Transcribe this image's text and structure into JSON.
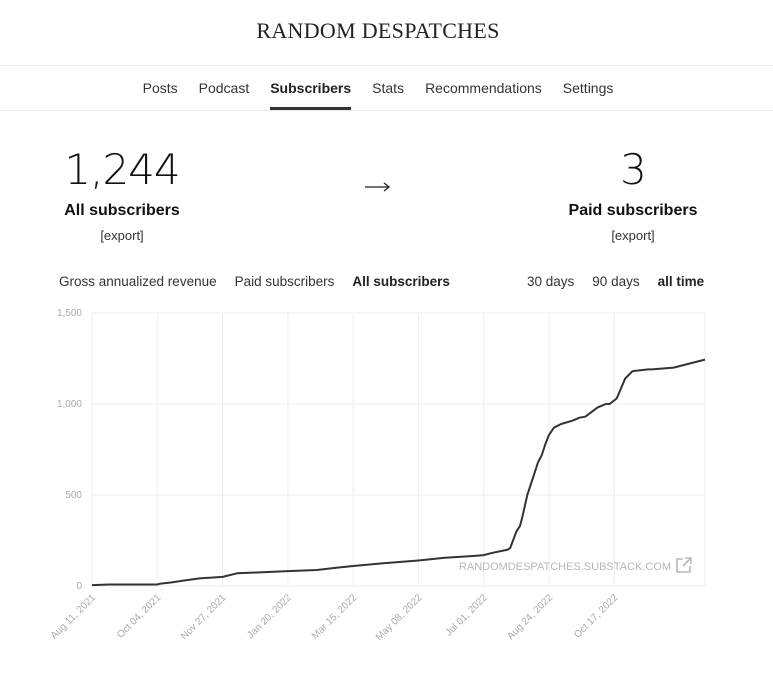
{
  "site": {
    "title": "RANDOM DESPATCHES"
  },
  "nav": {
    "tabs": [
      {
        "label": "Posts",
        "active": false
      },
      {
        "label": "Podcast",
        "active": false
      },
      {
        "label": "Subscribers",
        "active": true
      },
      {
        "label": "Stats",
        "active": false
      },
      {
        "label": "Recommendations",
        "active": false
      },
      {
        "label": "Settings",
        "active": false
      }
    ]
  },
  "stats": {
    "all": {
      "value": "1,244",
      "label": "All subscribers",
      "export": "[export]"
    },
    "arrow": "⟶",
    "paid": {
      "value": "3",
      "label": "Paid subscribers",
      "export": "[export]"
    }
  },
  "filters": {
    "metrics": [
      {
        "label": "Gross annualized revenue",
        "active": false
      },
      {
        "label": "Paid subscribers",
        "active": false
      },
      {
        "label": "All subscribers",
        "active": true
      }
    ],
    "ranges": [
      {
        "label": "30 days",
        "active": false
      },
      {
        "label": "90 days",
        "active": false
      },
      {
        "label": "all time",
        "active": true
      }
    ]
  },
  "colors": {
    "line": "#333333",
    "grid": "#eeeeee",
    "axis_text": "#aaaaaa",
    "watermark": "#b8b8b8"
  },
  "chart_data": {
    "type": "line",
    "title": "",
    "xlabel": "",
    "ylabel": "",
    "ylim": [
      0,
      1500
    ],
    "yticks": [
      0,
      500,
      1000,
      1500
    ],
    "ytick_labels": [
      "0",
      "500",
      "1,000",
      "1,500"
    ],
    "x_range": [
      "2021-08-11",
      "2022-12-31"
    ],
    "xticks": [
      "2021-08-11",
      "2021-10-04",
      "2021-11-27",
      "2022-01-20",
      "2022-03-15",
      "2022-05-08",
      "2022-07-01",
      "2022-08-24",
      "2022-10-17"
    ],
    "xtick_labels": [
      "Aug 11, 2021",
      "Oct 04, 2021",
      "Nov 27, 2021",
      "Jan 20, 2022",
      "Mar 15, 2022",
      "May 08, 2022",
      "Jul 01, 2022",
      "Aug 24, 2022",
      "Oct 17, 2022"
    ],
    "grid": true,
    "watermark": "RANDOMDESPATCHES.SUBSTACK.COM",
    "series": [
      {
        "x": [
          "2021-08-11",
          "2021-08-25",
          "2021-09-15",
          "2021-10-04",
          "2021-10-06",
          "2021-10-16",
          "2021-10-24",
          "2021-11-08",
          "2021-11-27",
          "2021-12-09",
          "2022-01-20",
          "2022-02-13",
          "2022-03-01",
          "2022-03-15",
          "2022-04-09",
          "2022-05-08",
          "2022-05-30",
          "2022-06-22",
          "2022-07-01",
          "2022-07-07",
          "2022-07-21",
          "2022-07-23",
          "2022-07-28",
          "2022-07-31",
          "2022-08-02",
          "2022-08-06",
          "2022-08-11",
          "2022-08-15",
          "2022-08-18",
          "2022-08-21",
          "2022-08-24",
          "2022-08-28",
          "2022-09-03",
          "2022-09-13",
          "2022-09-18",
          "2022-09-23",
          "2022-10-03",
          "2022-10-10",
          "2022-10-13",
          "2022-10-15",
          "2022-10-19",
          "2022-10-26",
          "2022-11-01",
          "2022-11-14",
          "2022-11-17",
          "2022-12-05",
          "2022-12-14",
          "2022-12-31"
        ],
        "y": [
          5,
          8,
          8,
          8,
          12,
          20,
          28,
          42,
          50,
          70,
          82,
          88,
          100,
          110,
          125,
          140,
          155,
          165,
          170,
          180,
          200,
          210,
          300,
          330,
          380,
          500,
          600,
          680,
          720,
          780,
          830,
          870,
          890,
          910,
          925,
          930,
          980,
          1000,
          1000,
          1010,
          1030,
          1140,
          1180,
          1190,
          1190,
          1200,
          1215,
          1244
        ]
      }
    ]
  }
}
